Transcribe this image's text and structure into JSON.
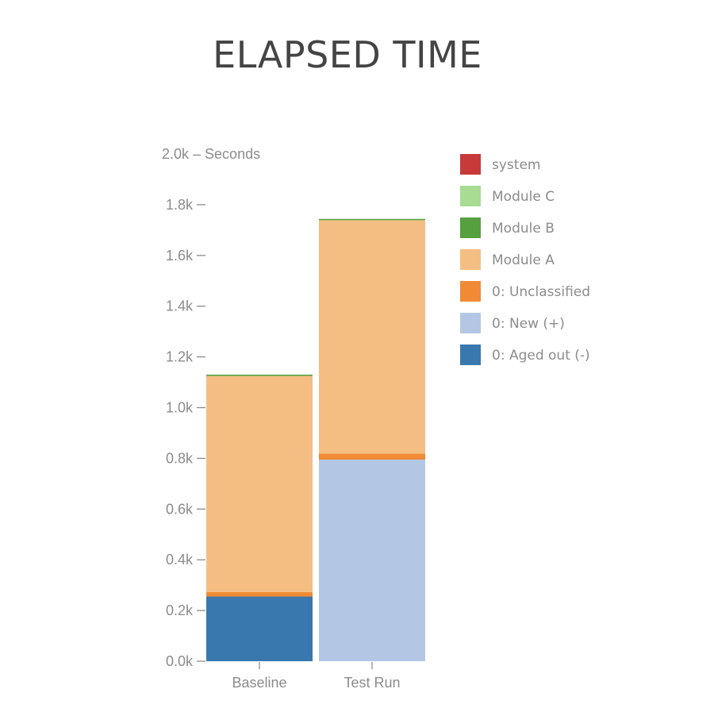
{
  "chart_data": {
    "type": "bar",
    "stacked": true,
    "title": "ELAPSED TIME",
    "ylabel": "Seconds",
    "ylim": [
      0,
      2000
    ],
    "yticks": [
      {
        "value": 0,
        "label": "0.0k"
      },
      {
        "value": 200,
        "label": "0.2k"
      },
      {
        "value": 400,
        "label": "0.4k"
      },
      {
        "value": 600,
        "label": "0.6k"
      },
      {
        "value": 800,
        "label": "0.8k"
      },
      {
        "value": 1000,
        "label": "1.0k"
      },
      {
        "value": 1200,
        "label": "1.2k"
      },
      {
        "value": 1400,
        "label": "1.4k"
      },
      {
        "value": 1600,
        "label": "1.6k"
      },
      {
        "value": 1800,
        "label": "1.8k"
      },
      {
        "value": 2000,
        "label": "2.0k"
      }
    ],
    "categories": [
      "Baseline",
      "Test Run"
    ],
    "series": [
      {
        "name": "0: Aged out (-)",
        "color": "#3878ae",
        "values": [
          255,
          0
        ]
      },
      {
        "name": "0: New (+)",
        "color": "#b3c7e5",
        "values": [
          0,
          795
        ]
      },
      {
        "name": "0: Unclassified",
        "color": "#f08a35",
        "values": [
          18,
          24
        ]
      },
      {
        "name": "Module A",
        "color": "#f4be82",
        "values": [
          852,
          920
        ]
      },
      {
        "name": "Module B",
        "color": "#56a03f",
        "values": [
          5,
          5
        ]
      },
      {
        "name": "Module C",
        "color": "#a8dc93",
        "values": [
          0,
          0
        ]
      },
      {
        "name": "system",
        "color": "#c8393a",
        "values": [
          0,
          0
        ]
      }
    ],
    "legend": {
      "position": "right",
      "order": [
        "system",
        "Module C",
        "Module B",
        "Module A",
        "0: Unclassified",
        "0: New (+)",
        "0: Aged out (-)"
      ]
    },
    "grid": false
  }
}
